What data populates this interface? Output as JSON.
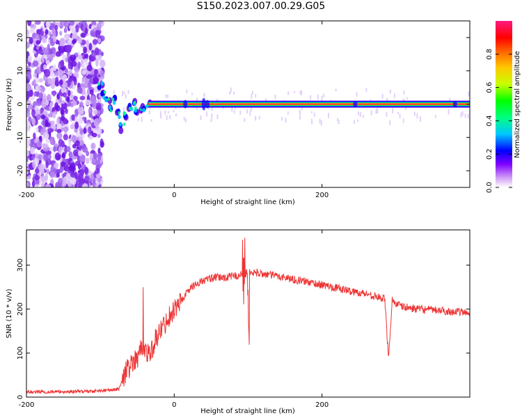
{
  "title": "S150.2023.007.00.29.G05",
  "chart_data": [
    {
      "type": "heatmap",
      "xlabel": "Height of straight line (km)",
      "ylabel": "Frequency (Hz)",
      "xlim": [
        -200,
        400
      ],
      "ylim": [
        -25,
        25
      ],
      "xticks": [
        -200,
        0,
        200
      ],
      "yticks": [
        -20,
        -10,
        0,
        10,
        20
      ],
      "colorbar": {
        "label": "Normalized spectral amplitude",
        "range": [
          0,
          1
        ],
        "ticks": [
          0.0,
          0.2,
          0.4,
          0.6,
          0.8
        ],
        "colors": [
          "#ffffff",
          "#a020f0",
          "#0000ff",
          "#00ffff",
          "#00ff00",
          "#ffff00",
          "#ff7f00",
          "#ff0000",
          "#ff1493"
        ]
      },
      "features": {
        "noise_region_x": [
          -200,
          -97
        ],
        "carrier_line_start_x": -35,
        "carrier_frequency": 0,
        "carrier_amplitude": 1.0,
        "transition_track": [
          [
            -100,
            6
          ],
          [
            -95,
            3
          ],
          [
            -90,
            1
          ],
          [
            -85,
            -1
          ],
          [
            -80,
            1
          ],
          [
            -75,
            -3
          ],
          [
            -70,
            -7
          ],
          [
            -65,
            -3
          ],
          [
            -60,
            -1
          ],
          [
            -55,
            1
          ],
          [
            -50,
            -2
          ],
          [
            -45,
            -1
          ],
          [
            -40,
            -1
          ],
          [
            -35,
            0
          ]
        ]
      }
    },
    {
      "type": "line",
      "xlabel": "Height of straight line (km)",
      "ylabel": "SNR (10 * v/v)",
      "xlim": [
        -200,
        400
      ],
      "ylim": [
        0,
        380
      ],
      "xticks": [
        -200,
        0,
        200
      ],
      "yticks": [
        0,
        100,
        200,
        300
      ],
      "color": "#ee3333",
      "x": [
        -200,
        -150,
        -100,
        -75,
        -70,
        -65,
        -60,
        -55,
        -50,
        -45,
        -40,
        -35,
        -30,
        -25,
        -20,
        -15,
        -10,
        -5,
        0,
        10,
        20,
        30,
        40,
        50,
        60,
        70,
        80,
        90,
        95,
        100,
        105,
        110,
        120,
        130,
        140,
        150,
        160,
        170,
        180,
        200,
        220,
        240,
        260,
        270,
        280,
        285,
        290,
        295,
        300,
        310,
        330,
        350,
        370,
        390,
        400
      ],
      "y": [
        12,
        12,
        14,
        18,
        40,
        60,
        70,
        85,
        90,
        110,
        105,
        100,
        110,
        130,
        150,
        160,
        175,
        190,
        200,
        220,
        245,
        258,
        265,
        270,
        272,
        272,
        275,
        278,
        280,
        283,
        282,
        283,
        280,
        278,
        275,
        272,
        268,
        265,
        262,
        255,
        248,
        240,
        235,
        230,
        225,
        222,
        90,
        222,
        212,
        205,
        200,
        198,
        195,
        193,
        190
      ]
    }
  ]
}
